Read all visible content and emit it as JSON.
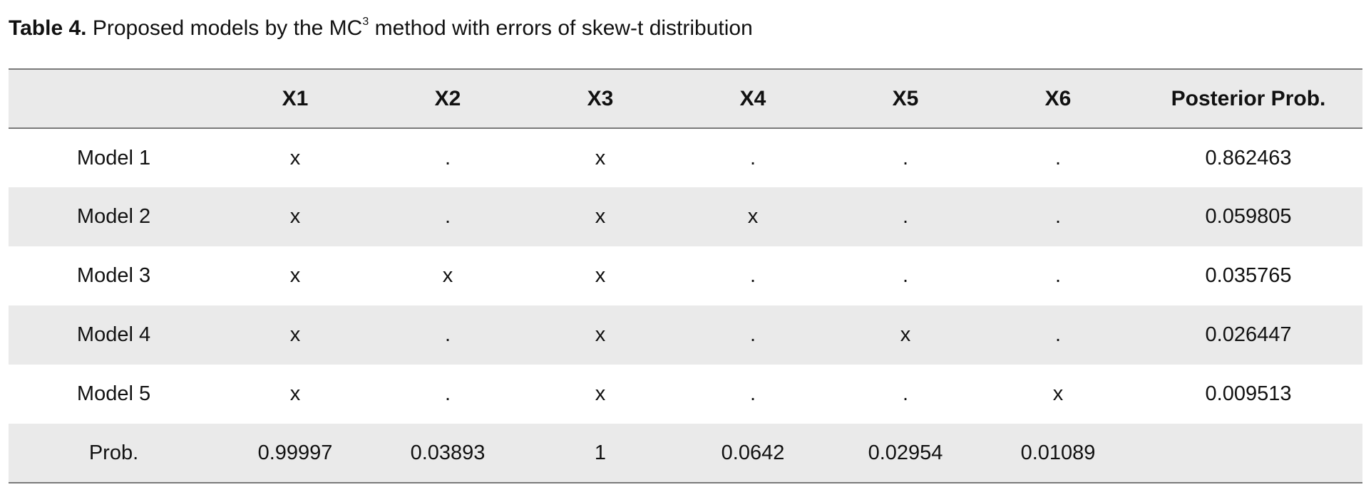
{
  "caption": {
    "label": "Table 4.",
    "text_before": " Proposed models by the MC",
    "superscript": "3",
    "text_after": " method with errors of skew-t distribution"
  },
  "table": {
    "headers": [
      "",
      "X1",
      "X2",
      "X3",
      "X4",
      "X5",
      "X6",
      "Posterior Prob."
    ],
    "rows": [
      [
        "Model 1",
        "x",
        ".",
        "x",
        ".",
        ".",
        ".",
        "0.862463"
      ],
      [
        "Model 2",
        "x",
        ".",
        "x",
        "x",
        ".",
        ".",
        "0.059805"
      ],
      [
        "Model 3",
        "x",
        "x",
        "x",
        ".",
        ".",
        ".",
        "0.035765"
      ],
      [
        "Model 4",
        "x",
        ".",
        "x",
        ".",
        "x",
        ".",
        "0.026447"
      ],
      [
        "Model 5",
        "x",
        ".",
        "x",
        ".",
        ".",
        "x",
        "0.009513"
      ],
      [
        "Prob.",
        "0.99997",
        "0.03893",
        "1",
        "0.0642",
        "0.02954",
        "0.01089",
        ""
      ]
    ]
  },
  "colors": {
    "shaded_row": "#eaeaea",
    "rule": "#7a7a7a"
  }
}
